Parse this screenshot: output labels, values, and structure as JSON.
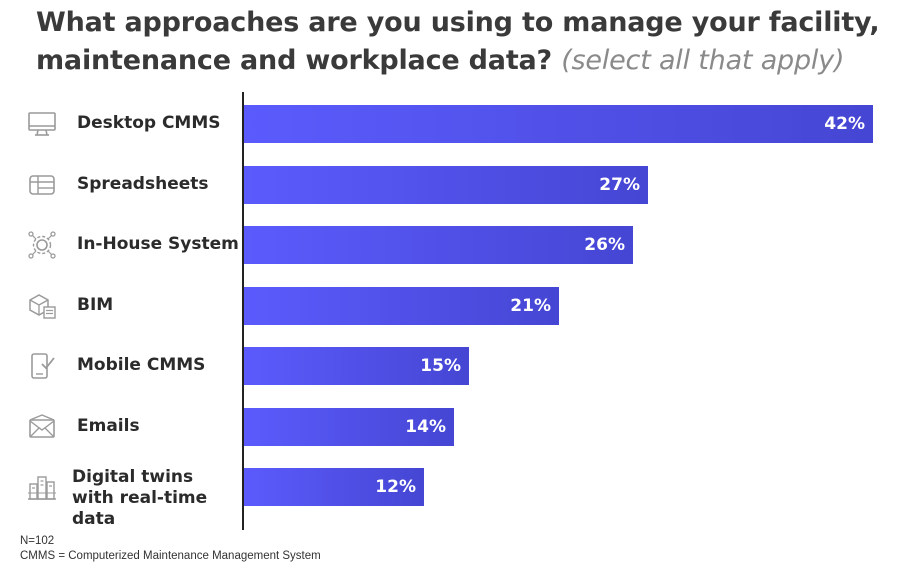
{
  "title": {
    "main": "What approaches are you using to manage your facility, maintenance and workplace data?",
    "sub": "(select all that apply)"
  },
  "chart_data": {
    "type": "bar",
    "orientation": "horizontal",
    "categories": [
      "Desktop CMMS",
      "Spreadsheets",
      "In-House System",
      "BIM",
      "Mobile CMMS",
      "Emails",
      "Digital twins with real-time data"
    ],
    "values": [
      42,
      27,
      26,
      21,
      15,
      14,
      12
    ],
    "value_labels": [
      "42%",
      "27%",
      "26%",
      "21%",
      "15%",
      "14%",
      "12%"
    ],
    "icons": [
      "monitor-icon",
      "spreadsheet-icon",
      "gear-network-icon",
      "cube-document-icon",
      "mobile-check-icon",
      "envelope-icon",
      "buildings-icon"
    ],
    "xlim": [
      0,
      42
    ],
    "grid": false,
    "bar_color": "#5656f0"
  },
  "footnotes": {
    "n": "N=102",
    "definition": "CMMS = Computerized Maintenance Management System"
  }
}
